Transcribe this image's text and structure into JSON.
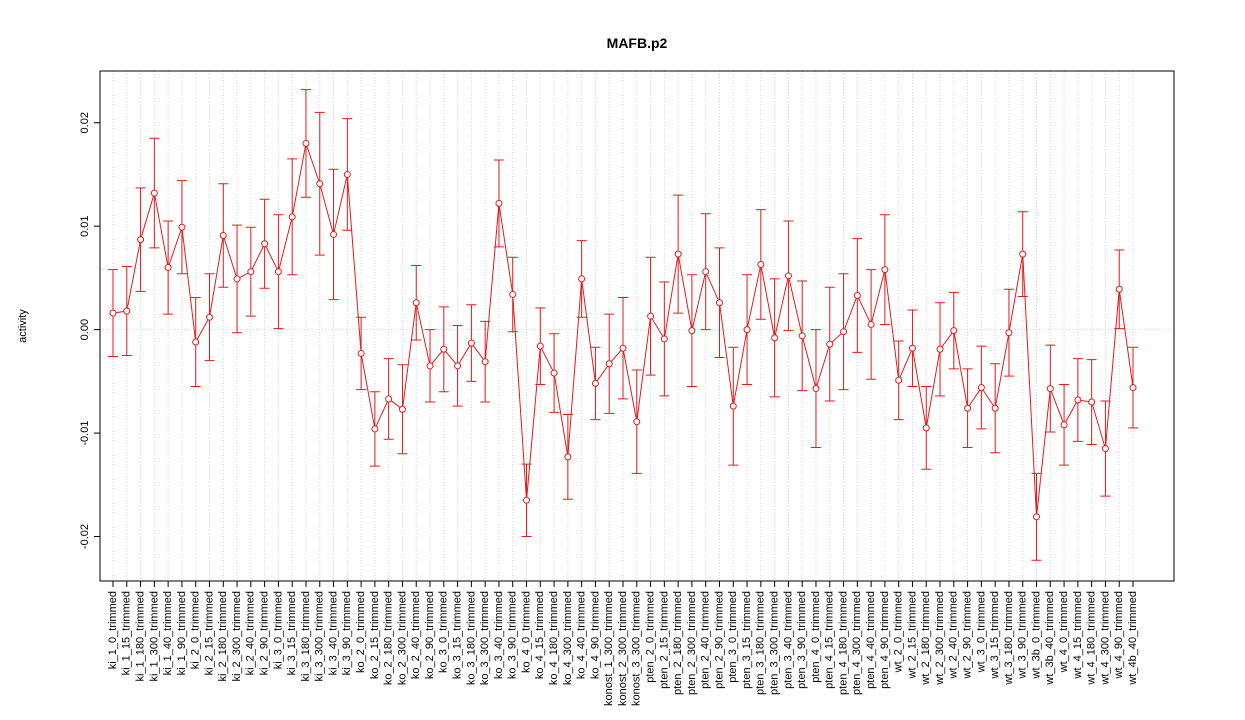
{
  "chart_data": {
    "type": "line",
    "title": "MAFB.p2",
    "ylabel": "activity",
    "categories": [
      "ki_1_0_trimmed",
      "ki_1_15_trimmed",
      "ki_1_180_trimmed",
      "ki_1_300_trimmed",
      "ki_1_40_trimmed",
      "ki_1_90_trimmed",
      "ki_2_0_trimmed",
      "ki_2_15_trimmed",
      "ki_2_180_trimmed",
      "ki_2_300_trimmed",
      "ki_2_40_trimmed",
      "ki_2_90_trimmed",
      "ki_3_0_trimmed",
      "ki_3_15_trimmed",
      "ki_3_180_trimmed",
      "ki_3_300_trimmed",
      "ki_3_40_trimmed",
      "ki_3_90_trimmed",
      "ko_2_0_trimmed",
      "ko_2_15_trimmed",
      "ko_2_180_trimmed",
      "ko_2_300_trimmed",
      "ko_2_40_trimmed",
      "ko_2_90_trimmed",
      "ko_3_0_trimmed",
      "ko_3_15_trimmed",
      "ko_3_180_trimmed",
      "ko_3_300_trimmed",
      "ko_3_40_trimmed",
      "ko_3_90_trimmed",
      "ko_4_0_trimmed",
      "ko_4_15_trimmed",
      "ko_4_180_trimmed",
      "ko_4_300_trimmed",
      "ko_4_40_trimmed",
      "ko_4_90_trimmed",
      "konost_1_300_trimmed",
      "konost_2_300_trimmed",
      "konost_3_300_trimmed",
      "pten_2_0_trimmed",
      "pten_2_15_trimmed",
      "pten_2_180_trimmed",
      "pten_2_300_trimmed",
      "pten_2_40_trimmed",
      "pten_2_90_trimmed",
      "pten_3_0_trimmed",
      "pten_3_15_trimmed",
      "pten_3_180_trimmed",
      "pten_3_300_trimmed",
      "pten_3_40_trimmed",
      "pten_3_90_trimmed",
      "pten_4_0_trimmed",
      "pten_4_15_trimmed",
      "pten_4_180_trimmed",
      "pten_4_300_trimmed",
      "pten_4_40_trimmed",
      "pten_4_90_trimmed",
      "wt_2_0_trimmed",
      "wt_2_15_trimmed",
      "wt_2_180_trimmed",
      "wt_2_300_trimmed",
      "wt_2_40_trimmed",
      "wt_2_90_trimmed",
      "wt_3_0_trimmed",
      "wt_3_15_trimmed",
      "wt_3_180_trimmed",
      "wt_3_90_trimmed",
      "wt_3b_0_trimmed",
      "wt_3b_40_trimmed",
      "wt_4_0_trimmed",
      "wt_4_15_trimmed",
      "wt_4_180_trimmed",
      "wt_4_300_trimmed",
      "wt_4_90_trimmed",
      "wt_4b_40_trimmed"
    ],
    "values": [
      0.0016,
      0.0018,
      0.0087,
      0.0132,
      0.006,
      0.0099,
      -0.0012,
      0.0012,
      0.0091,
      0.0049,
      0.0056,
      0.0083,
      0.0056,
      0.0109,
      0.018,
      0.0141,
      0.0092,
      0.015,
      -0.0023,
      -0.0096,
      -0.0067,
      -0.0077,
      0.0026,
      -0.0035,
      -0.0019,
      -0.0035,
      -0.0013,
      -0.0031,
      0.0122,
      0.0034,
      -0.0165,
      -0.0016,
      -0.0042,
      -0.0123,
      0.0049,
      -0.0052,
      -0.0033,
      -0.0018,
      -0.0089,
      0.0013,
      -0.0009,
      0.0073,
      -0.0001,
      0.0056,
      0.0026,
      -0.0074,
      0.0,
      0.0063,
      -0.0008,
      0.0052,
      -0.0006,
      -0.0057,
      -0.0014,
      -0.0002,
      0.0033,
      0.0005,
      0.0058,
      -0.0049,
      -0.0018,
      -0.0095,
      -0.0019,
      -0.0001,
      -0.0076,
      -0.0056,
      -0.0076,
      -0.0003,
      0.0073,
      -0.0181,
      -0.0057,
      -0.0092,
      -0.0068,
      -0.007,
      -0.0115,
      0.0039,
      -0.0056
    ],
    "errors": [
      0.0042,
      0.0043,
      0.005,
      0.0053,
      0.0045,
      0.0045,
      0.0043,
      0.0042,
      0.005,
      0.0052,
      0.0043,
      0.0043,
      0.0055,
      0.0056,
      0.0052,
      0.0069,
      0.0063,
      0.0054,
      0.0035,
      0.0036,
      0.0039,
      0.0043,
      0.0036,
      0.0035,
      0.0041,
      0.0039,
      0.0037,
      0.0039,
      0.0042,
      0.0036,
      0.0035,
      0.0037,
      0.0038,
      0.0041,
      0.0037,
      0.0035,
      0.0048,
      0.0049,
      0.005,
      0.0057,
      0.0055,
      0.0057,
      0.0054,
      0.0056,
      0.0053,
      0.0057,
      0.0053,
      0.0053,
      0.0057,
      0.0053,
      0.0053,
      0.0057,
      0.0055,
      0.0056,
      0.0055,
      0.0053,
      0.0053,
      0.0038,
      0.0037,
      0.004,
      0.0045,
      0.0037,
      0.0038,
      0.004,
      0.0043,
      0.0042,
      0.0041,
      0.0042,
      0.0042,
      0.0039,
      0.004,
      0.0041,
      0.0046,
      0.0038,
      0.0039
    ],
    "color": "#e41a1c",
    "ylim": [
      -0.0243,
      0.025
    ],
    "yticks": [
      -0.02,
      -0.01,
      {
        "value": 0,
        "label": "0.00"
      },
      0.01,
      0.02
    ],
    "grid": true
  }
}
